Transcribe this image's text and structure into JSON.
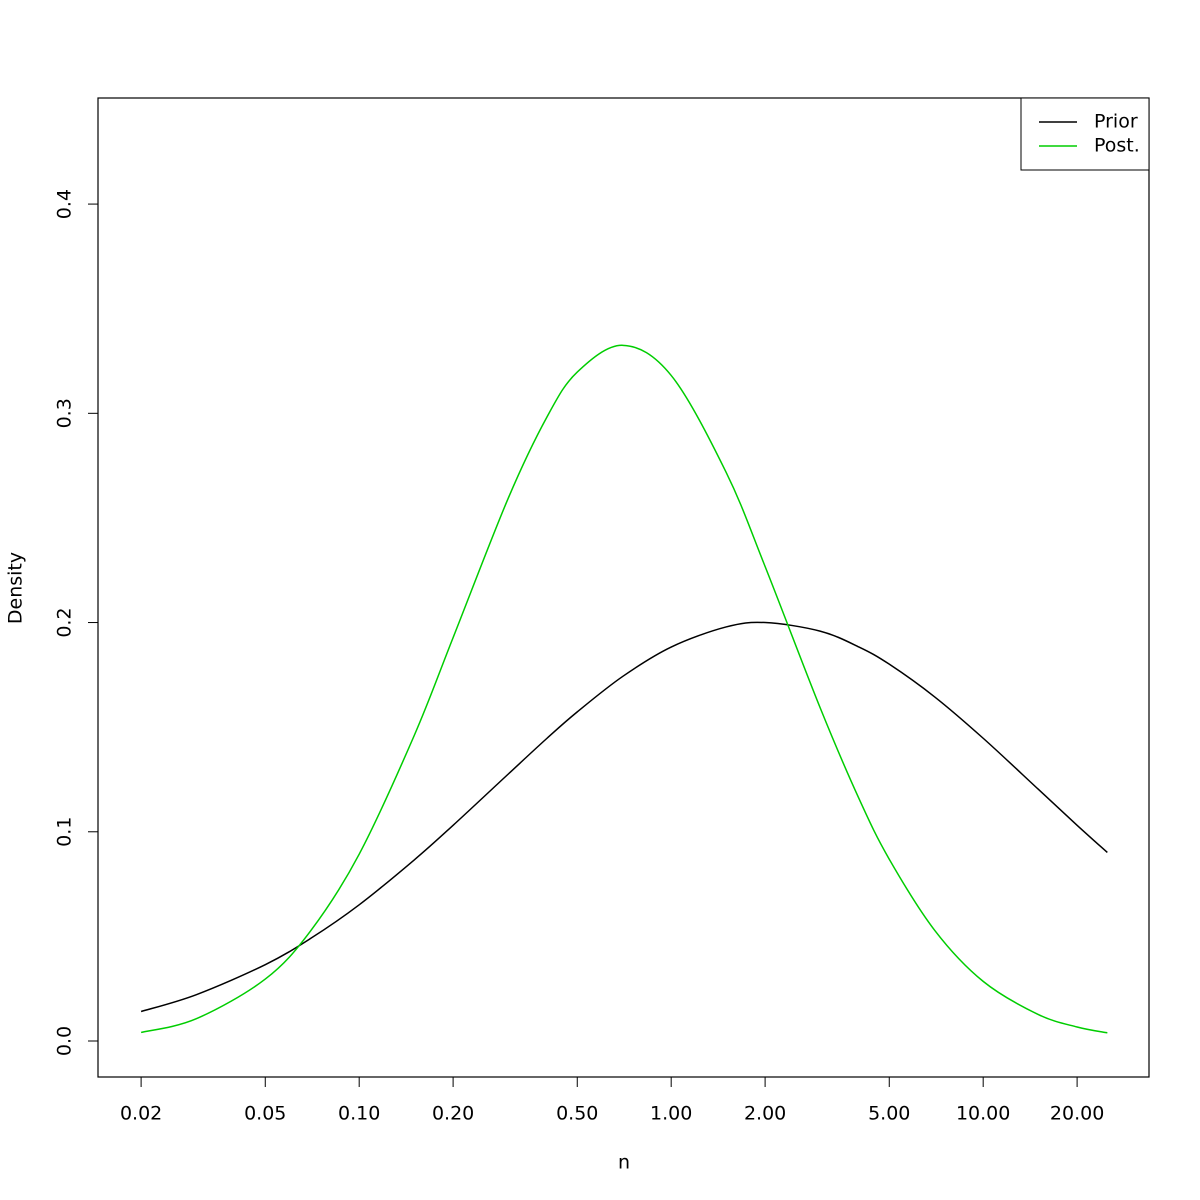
{
  "chart_data": {
    "type": "line",
    "xlabel": "n",
    "ylabel": "Density",
    "x": [
      0.02,
      0.03,
      0.05,
      0.07,
      0.1,
      0.15,
      0.2,
      0.3,
      0.4,
      0.5,
      0.7,
      1,
      1.5,
      2,
      3,
      4,
      5,
      7,
      10,
      15,
      20,
      25
    ],
    "series": [
      {
        "name": "Prior",
        "color": "#000000",
        "values": [
          0.0141,
          0.0221,
          0.0365,
          0.0491,
          0.0651,
          0.0865,
          0.1031,
          0.1275,
          0.1447,
          0.1573,
          0.1743,
          0.1883,
          0.1979,
          0.2,
          0.1959,
          0.1883,
          0.1801,
          0.1644,
          0.1447,
          0.1204,
          0.1031,
          0.0901
        ]
      },
      {
        "name": "Post.",
        "color": "#00cd00",
        "values": [
          0.0041,
          0.0106,
          0.0296,
          0.0528,
          0.0893,
          0.1459,
          0.1928,
          0.2592,
          0.2983,
          0.3197,
          0.3325,
          0.3181,
          0.2718,
          0.2268,
          0.1594,
          0.1158,
          0.0869,
          0.0528,
          0.0285,
          0.0127,
          0.0067,
          0.0039
        ]
      }
    ],
    "log_x": true,
    "xlim": [
      0.01455,
      34.0
    ],
    "ylim": [
      -0.0172,
      0.4507
    ],
    "xticks": [
      0.02,
      0.05,
      {
        "value": 0.1,
        "label": "0.10"
      },
      {
        "value": 0.2,
        "label": "0.20"
      },
      {
        "value": 0.5,
        "label": "0.50"
      },
      {
        "value": 1,
        "label": "1.00"
      },
      {
        "value": 2,
        "label": "2.00"
      },
      {
        "value": 5,
        "label": "5.00"
      },
      {
        "value": 10,
        "label": "10.00"
      },
      {
        "value": 20,
        "label": "20.00"
      }
    ],
    "yticks": [
      {
        "value": 0,
        "label": "0.0"
      },
      0.1,
      0.2,
      0.3,
      0.4
    ],
    "legend": "top-right"
  }
}
